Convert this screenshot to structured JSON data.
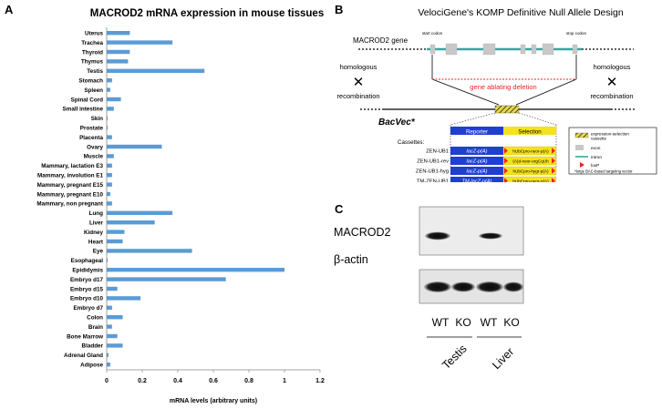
{
  "panel_a": {
    "letter": "A",
    "chart_data": {
      "type": "bar",
      "orientation": "horizontal",
      "title": "MACROD2 mRNA expression in mouse tissues",
      "xlabel": "mRNA levels (arbitrary units)",
      "ylabel": "",
      "xlim": [
        0,
        1.2
      ],
      "xticks": [
        "0",
        "0.2",
        "0.4",
        "0.6",
        "0.8",
        "1",
        "1.2"
      ],
      "grid": false,
      "bar_color": "#5b9bd5",
      "categories": [
        "Uterus",
        "Trachea",
        "Thyroid",
        "Thymus",
        "Testis",
        "Stomach",
        "Spleen",
        "Spinal Cord",
        "Small intestine",
        "Skin",
        "Prostate",
        "Placenta",
        "Ovary",
        "Muscle",
        "Mammary, lactation E3",
        "Mammary, involution E1",
        "Mammary, pregnant E15",
        "Mammary, pregnant E10",
        "Mammary, non pregnant",
        "Lung",
        "Liver",
        "Kidney",
        "Heart",
        "Eye",
        "Esophageal",
        "Epididymis",
        "Embryo d17",
        "Embryo d15",
        "Embryo d10",
        "Embryo d7",
        "Colon",
        "Brain",
        "Bone Marrow",
        "Bladder",
        "Adrenal Gland",
        "Adipose"
      ],
      "values": [
        0.13,
        0.37,
        0.13,
        0.12,
        0.55,
        0.03,
        0.02,
        0.08,
        0.04,
        0.005,
        0.005,
        0.03,
        0.31,
        0.04,
        0.03,
        0.03,
        0.03,
        0.02,
        0.03,
        0.37,
        0.27,
        0.1,
        0.09,
        0.48,
        0.005,
        1.0,
        0.67,
        0.06,
        0.19,
        0.03,
        0.09,
        0.03,
        0.06,
        0.09,
        0.01,
        0.02
      ]
    }
  },
  "panel_b": {
    "letter": "B",
    "title": "VelociGene's KOMP Definitive Null Allele Design",
    "gene_label": "MACROD2 gene",
    "start_codon": "start codon",
    "stop_codon": "stop codon",
    "homologous_left_1": "homologous",
    "homologous_left_2": "recombination",
    "homologous_right_1": "homologous",
    "homologous_right_2": "recombination",
    "deletion_label": "gene ablating deletion",
    "bacvec_label": "BacVec*",
    "reporter_label": "Reporter",
    "selection_label": "Selection",
    "cassettes_label": "Cassettes:",
    "cassettes": [
      {
        "name": "ZEN-UB1",
        "reporter": "lacZ-p(A)",
        "selection": "hUbCpro-neor-p(A)"
      },
      {
        "name": "ZEN-UB1-rev",
        "reporter": "lacZ-p(A)",
        "selection": "(A)d-neor-orgCqUh"
      },
      {
        "name": "ZEN-UB1-hyg",
        "reporter": "lacZ-p(A)",
        "selection": "hUbCpro-hygr-p(A)"
      },
      {
        "name": "TM-ZEN-UB1",
        "reporter": "TM-lacZ-p(A)",
        "selection": "hUbCpro-neor-p(A)"
      }
    ],
    "legend": [
      {
        "icon": "hatched-box-icon",
        "label": "expression-selection cassette"
      },
      {
        "icon": "exon-box-icon",
        "label": "exon"
      },
      {
        "icon": "intron-line-icon",
        "label": "intron"
      },
      {
        "icon": "loxp-triangle-icon",
        "label": "loxP"
      }
    ],
    "legend_footnote": "*large BAC-based targeting vector",
    "colors": {
      "intron": "#33a8a0",
      "exon": "#c8c8c8",
      "deletion": "#ee2222",
      "reporter": "#1f3fd1",
      "selection": "#f5e21a",
      "loxp": "#ee2222"
    }
  },
  "panel_c": {
    "letter": "C",
    "blot1_label": "MACROD2",
    "blot2_label": "β-actin",
    "lanes": [
      "WT",
      "KO",
      "WT",
      "KO"
    ],
    "groups": [
      "Testis",
      "Liver"
    ]
  }
}
